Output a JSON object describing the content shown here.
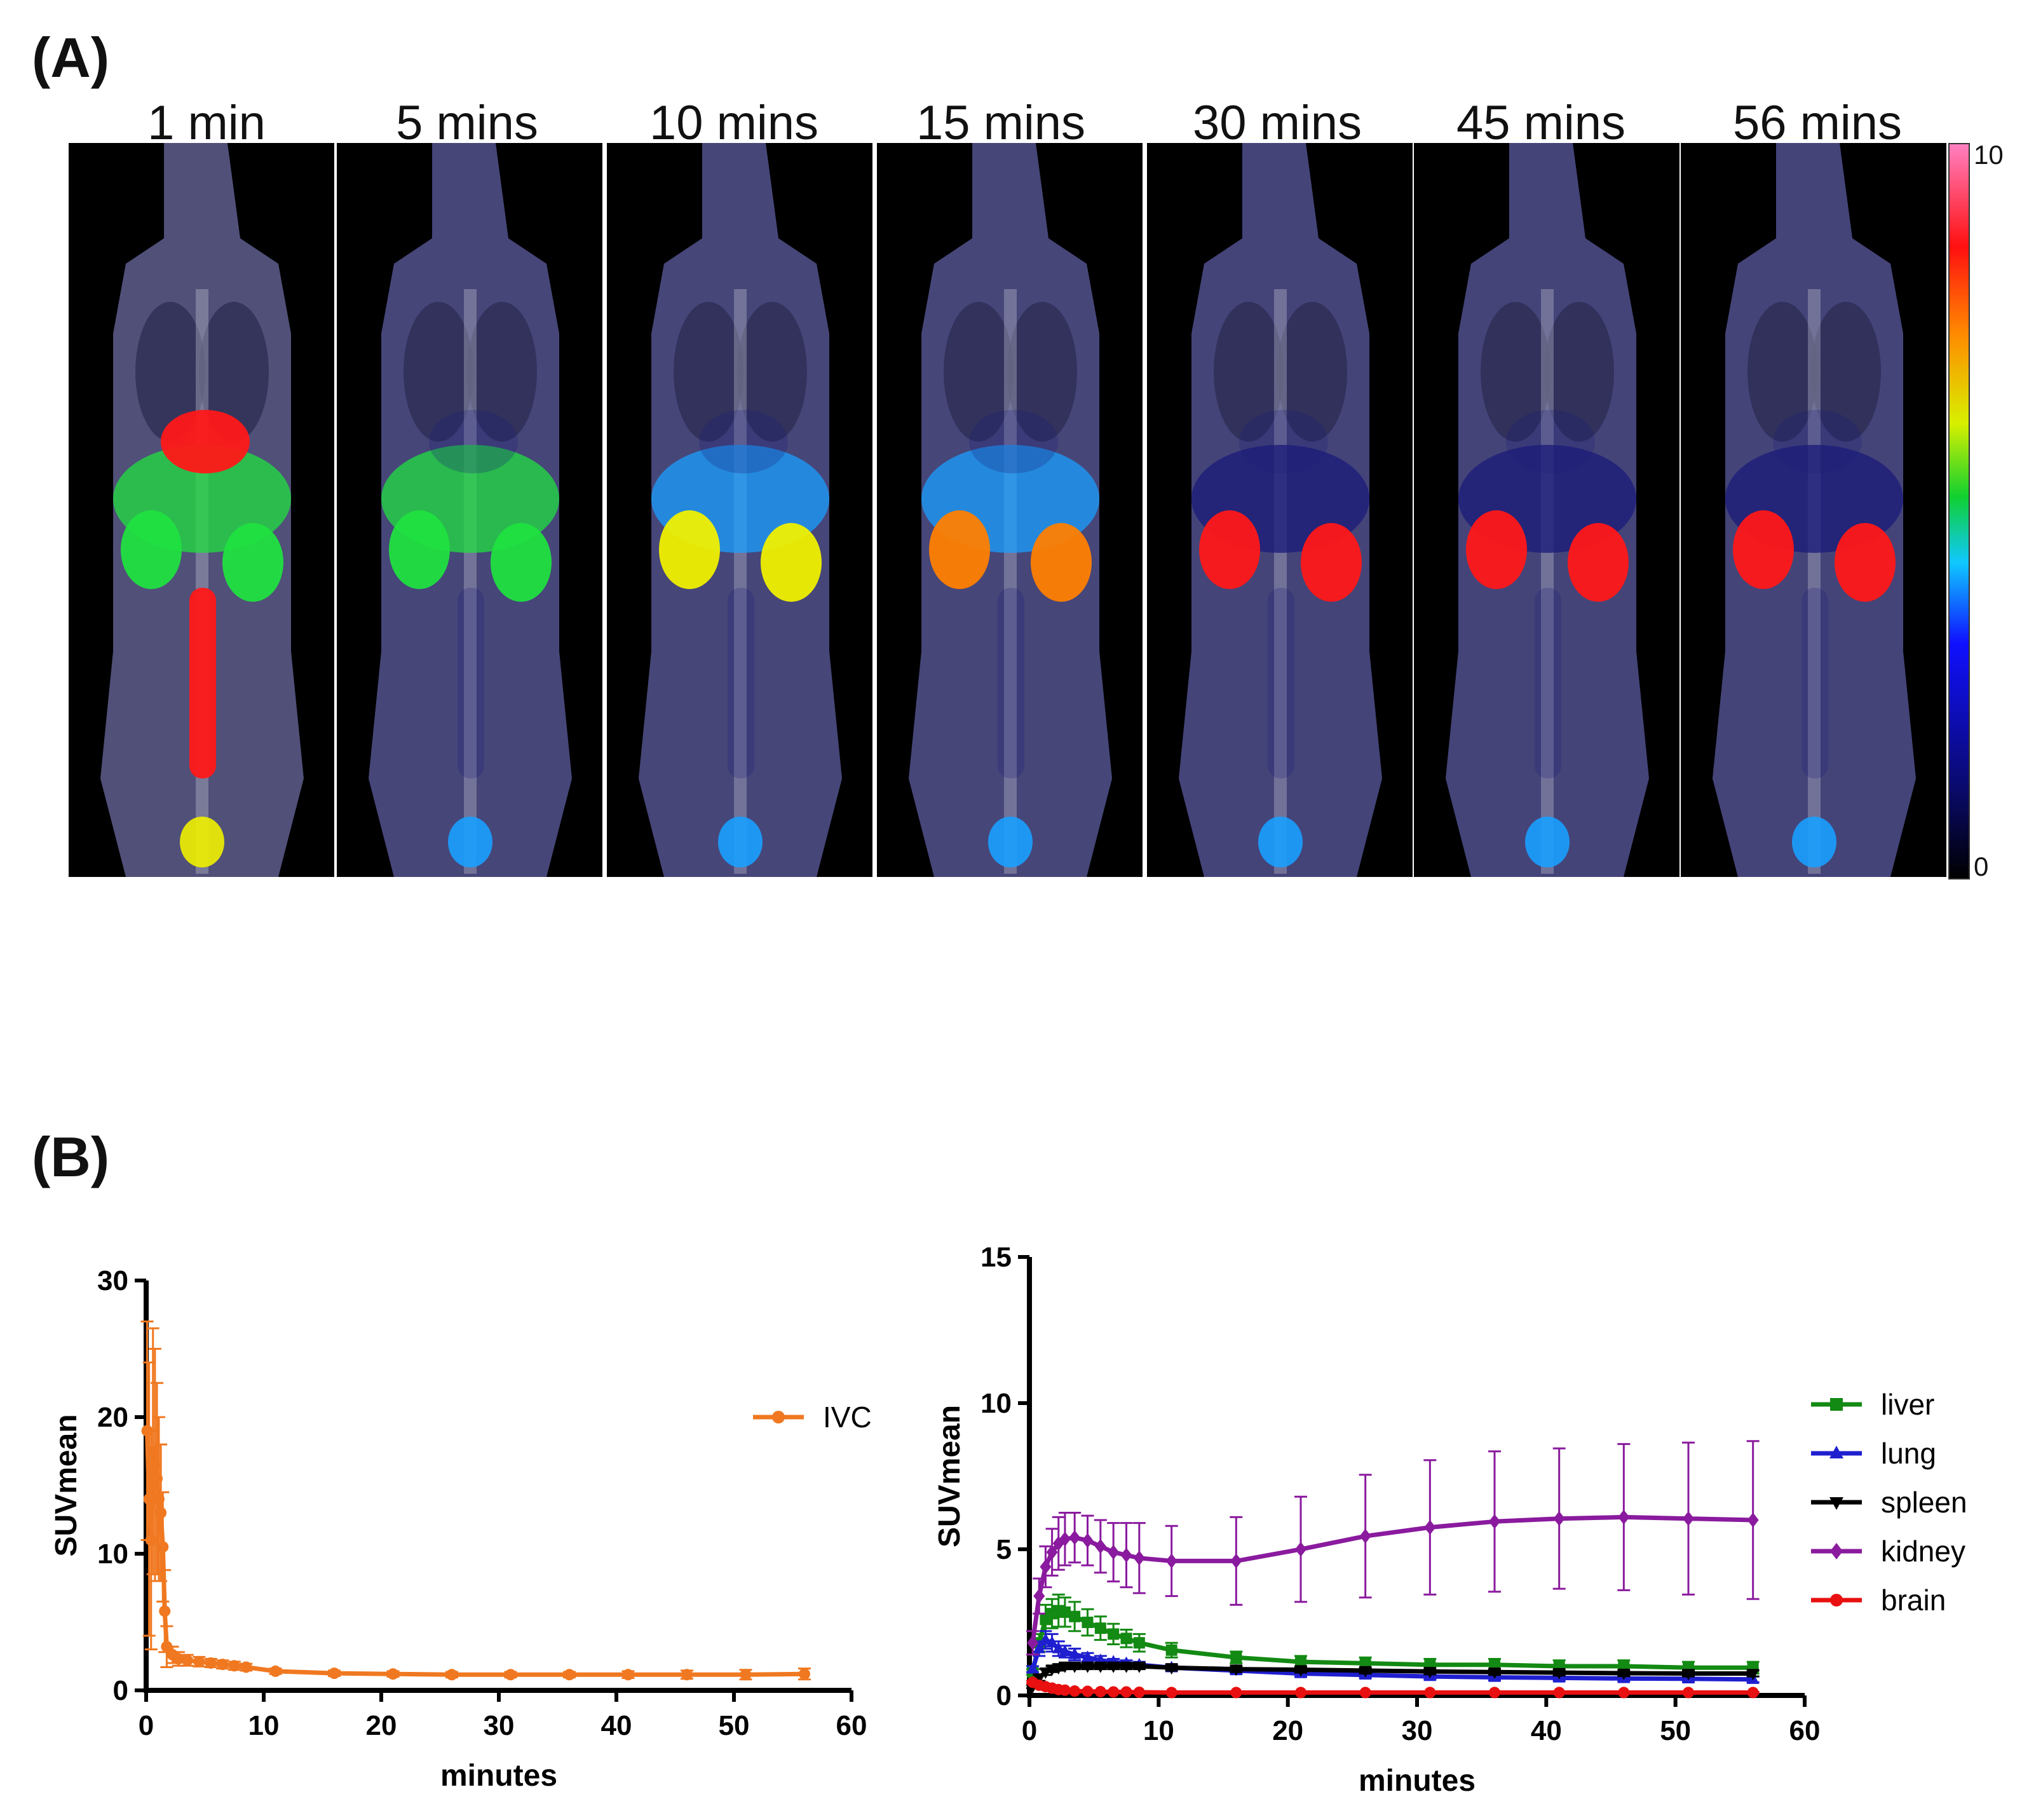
{
  "figure": {
    "panel_a_label": "(A)",
    "panel_b_label": "(B)",
    "timepoints": [
      "1 min",
      "5 mins",
      "10 mins",
      "15 mins",
      "30 mins",
      "45 mins",
      "56 mins"
    ],
    "colorbar": {
      "max_label": "10",
      "min_label": "0",
      "max": 10,
      "min": 0
    }
  },
  "chart_data": [
    {
      "type": "line",
      "title": "",
      "xlabel": "minutes",
      "ylabel": "SUVmean",
      "xlim": [
        0,
        60
      ],
      "ylim": [
        0,
        30
      ],
      "xticks": [
        0,
        10,
        20,
        30,
        40,
        50,
        60
      ],
      "yticks": [
        0,
        10,
        20,
        30
      ],
      "legend_position": "right",
      "series": [
        {
          "name": "IVC",
          "color": "#F07820",
          "marker": "circle",
          "x": [
            0.083,
            0.25,
            0.42,
            0.58,
            0.75,
            0.92,
            1.08,
            1.25,
            1.42,
            1.58,
            1.75,
            2.25,
            2.75,
            3.5,
            4.5,
            5.5,
            6.5,
            7.5,
            8.5,
            11,
            16,
            21,
            26,
            31,
            36,
            41,
            46,
            51,
            56
          ],
          "y": [
            19,
            14,
            11,
            17.5,
            16.5,
            15.5,
            14,
            13,
            10.5,
            5.8,
            3.2,
            2.6,
            2.3,
            2.2,
            2.1,
            2.0,
            1.9,
            1.8,
            1.7,
            1.4,
            1.25,
            1.2,
            1.15,
            1.15,
            1.15,
            1.15,
            1.15,
            1.15,
            1.2
          ],
          "error": [
            8,
            10,
            8,
            9,
            8.5,
            7,
            6,
            5,
            4,
            3,
            1.5,
            0.6,
            0.5,
            0.4,
            0.35,
            0.3,
            0.3,
            0.3,
            0.25,
            0.2,
            0.2,
            0.2,
            0.2,
            0.2,
            0.2,
            0.25,
            0.3,
            0.35,
            0.4
          ]
        }
      ]
    },
    {
      "type": "line",
      "title": "",
      "xlabel": "minutes",
      "ylabel": "SUVmean",
      "xlim": [
        0,
        60
      ],
      "ylim": [
        0,
        15
      ],
      "xticks": [
        0,
        10,
        20,
        30,
        40,
        50,
        60
      ],
      "yticks": [
        0,
        5,
        10,
        15
      ],
      "legend_position": "right",
      "x": [
        0.25,
        0.75,
        1.25,
        1.75,
        2.25,
        2.75,
        3.5,
        4.5,
        5.5,
        6.5,
        7.5,
        8.5,
        11,
        16,
        21,
        26,
        31,
        36,
        41,
        46,
        51,
        56
      ],
      "series": [
        {
          "name": "liver",
          "color": "#138A13",
          "marker": "square",
          "y": [
            0.8,
            1.8,
            2.6,
            2.8,
            2.9,
            2.85,
            2.7,
            2.5,
            2.3,
            2.1,
            1.95,
            1.8,
            1.55,
            1.3,
            1.15,
            1.1,
            1.05,
            1.05,
            1.0,
            1.0,
            0.95,
            0.95
          ],
          "error": [
            0.1,
            0.3,
            0.5,
            0.5,
            0.55,
            0.5,
            0.5,
            0.45,
            0.4,
            0.35,
            0.3,
            0.3,
            0.25,
            0.2,
            0.2,
            0.2,
            0.2,
            0.2,
            0.2,
            0.2,
            0.2,
            0.2
          ]
        },
        {
          "name": "lung",
          "color": "#1F1FD0",
          "marker": "triangle-up",
          "y": [
            0.9,
            1.6,
            1.9,
            1.8,
            1.6,
            1.5,
            1.4,
            1.3,
            1.2,
            1.15,
            1.1,
            1.05,
            0.95,
            0.85,
            0.75,
            0.7,
            0.65,
            0.62,
            0.6,
            0.58,
            0.57,
            0.55
          ],
          "error": [
            0.1,
            0.25,
            0.3,
            0.3,
            0.25,
            0.2,
            0.2,
            0.15,
            0.15,
            0.1,
            0.1,
            0.1,
            0.1,
            0.1,
            0.1,
            0.1,
            0.1,
            0.1,
            0.1,
            0.1,
            0.1,
            0.1
          ]
        },
        {
          "name": "spleen",
          "color": "#000000",
          "marker": "triangle-down",
          "y": [
            0.3,
            0.6,
            0.8,
            0.9,
            0.95,
            1.0,
            1.0,
            1.0,
            1.0,
            1.0,
            1.0,
            1.0,
            0.95,
            0.9,
            0.88,
            0.85,
            0.82,
            0.8,
            0.78,
            0.76,
            0.75,
            0.75
          ],
          "error": [
            0.05,
            0.1,
            0.1,
            0.1,
            0.1,
            0.1,
            0.1,
            0.1,
            0.1,
            0.1,
            0.1,
            0.1,
            0.1,
            0.1,
            0.1,
            0.1,
            0.1,
            0.1,
            0.1,
            0.1,
            0.1,
            0.1
          ]
        },
        {
          "name": "kidney",
          "color": "#8A1A9E",
          "marker": "diamond",
          "y": [
            1.8,
            3.4,
            4.4,
            4.9,
            5.2,
            5.35,
            5.4,
            5.3,
            5.1,
            4.9,
            4.8,
            4.7,
            4.6,
            4.6,
            5.0,
            5.45,
            5.75,
            5.95,
            6.05,
            6.1,
            6.05,
            6.0
          ],
          "error": [
            0.4,
            0.6,
            0.7,
            0.8,
            0.9,
            0.9,
            0.85,
            0.85,
            0.9,
            1.0,
            1.1,
            1.2,
            1.2,
            1.5,
            1.8,
            2.1,
            2.3,
            2.4,
            2.4,
            2.5,
            2.6,
            2.7
          ]
        },
        {
          "name": "brain",
          "color": "#E81010",
          "marker": "circle",
          "y": [
            0.45,
            0.35,
            0.3,
            0.25,
            0.2,
            0.18,
            0.15,
            0.14,
            0.13,
            0.12,
            0.12,
            0.11,
            0.1,
            0.1,
            0.1,
            0.1,
            0.1,
            0.1,
            0.1,
            0.1,
            0.1,
            0.1
          ],
          "error": [
            0.05,
            0.05,
            0.05,
            0.05,
            0.03,
            0.03,
            0.03,
            0.03,
            0.02,
            0.02,
            0.02,
            0.02,
            0.02,
            0.02,
            0.02,
            0.02,
            0.02,
            0.02,
            0.02,
            0.02,
            0.02,
            0.02
          ]
        }
      ]
    }
  ]
}
